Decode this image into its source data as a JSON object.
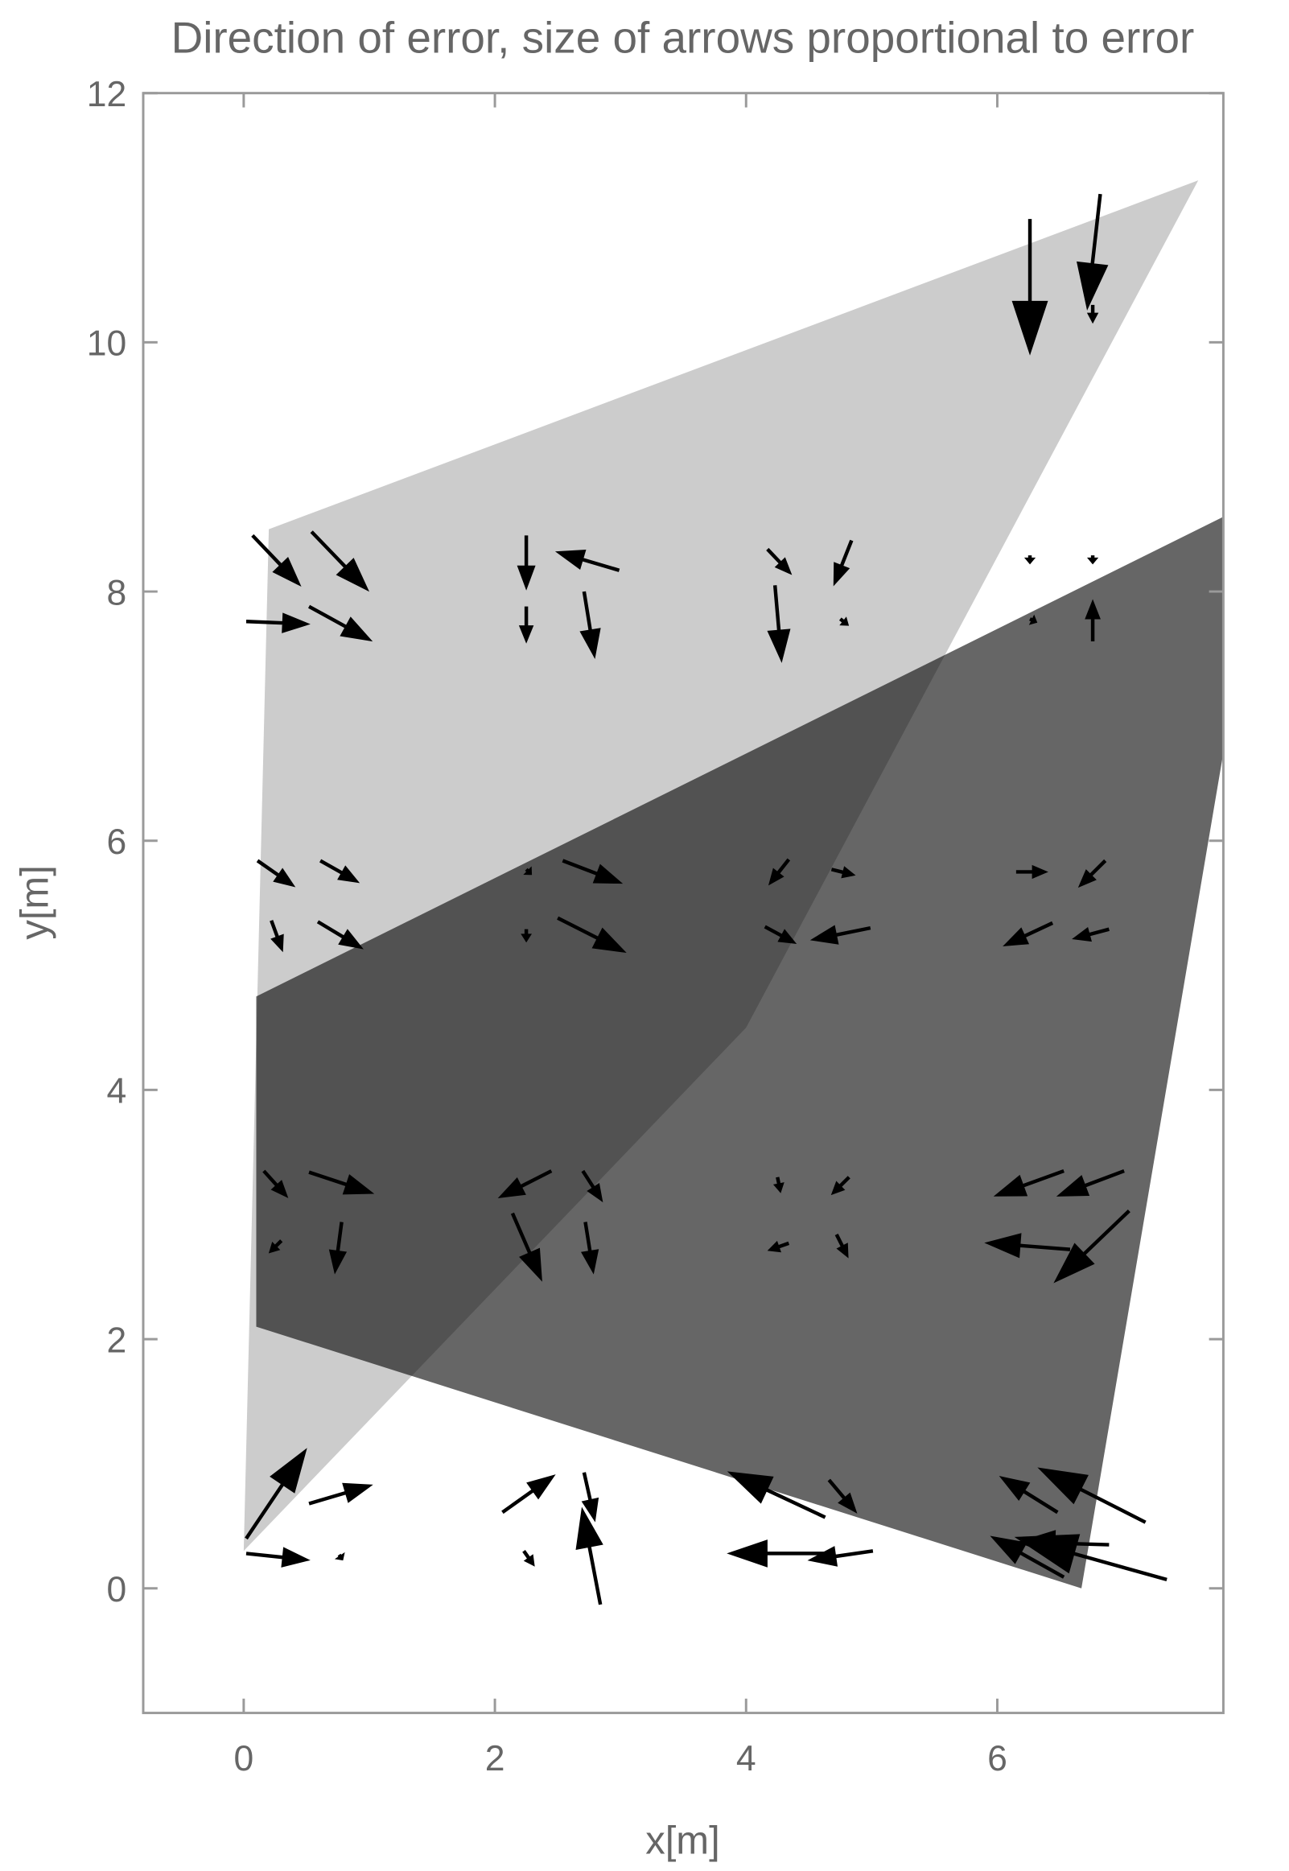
{
  "chart_data": {
    "type": "vector",
    "title": "Direction of error, size of arrows proportional to error",
    "x_label": "x[m]",
    "y_label": "y[m]",
    "xlim": [
      -0.8,
      7.8
    ],
    "ylim": [
      -1,
      12
    ],
    "xticks": [
      0,
      2,
      4,
      6
    ],
    "yticks": [
      0,
      2,
      4,
      6,
      8,
      10,
      12
    ],
    "polygons": [
      {
        "color": "#cccccc",
        "opacity": 1,
        "x": [
          0.2,
          7.6,
          4.0,
          0.0
        ],
        "y": [
          8.5,
          11.3,
          4.5,
          0.3
        ]
      },
      {
        "color": "#000000",
        "opacity": 0.6,
        "x": [
          0.1,
          7.9,
          7.9,
          6.67,
          0.1
        ],
        "y": [
          4.75,
          8.65,
          7.3,
          0.0,
          2.1
        ]
      }
    ],
    "arrow_color": "#000000",
    "arrows": {
      "x0": [
        0.07,
        0.54,
        0.02,
        0.52,
        2.25,
        2.25,
        2.99,
        2.71,
        4.17,
        4.84,
        4.23,
        4.75,
        6.26,
        6.76,
        6.26,
        6.76,
        6.26,
        6.82,
        6.76,
        0.11,
        0.61,
        0.22,
        0.59,
        2.25,
        2.54,
        2.25,
        2.5,
        4.34,
        4.68,
        4.15,
        4.99,
        6.15,
        6.86,
        6.44,
        6.89,
        0.16,
        0.52,
        0.3,
        0.78,
        2.45,
        2.7,
        2.14,
        2.72,
        4.25,
        4.82,
        4.34,
        4.72,
        6.53,
        7.01,
        6.58,
        7.05,
        0.02,
        0.52,
        0.02,
        0.76,
        2.06,
        2.23,
        2.71,
        2.84,
        4.63,
        4.66,
        5.01,
        4.63,
        6.48,
        7.18,
        6.53,
        7.35,
        6.89
      ],
      "y0": [
        8.45,
        8.48,
        7.76,
        7.88,
        8.45,
        7.88,
        8.17,
        8.0,
        8.34,
        8.41,
        8.05,
        7.78,
        8.29,
        8.29,
        7.78,
        7.6,
        10.99,
        11.19,
        10.3,
        5.84,
        5.84,
        5.36,
        5.35,
        5.77,
        5.84,
        5.29,
        5.38,
        5.85,
        5.77,
        5.31,
        5.3,
        5.75,
        5.84,
        5.34,
        5.29,
        3.35,
        3.34,
        2.79,
        2.94,
        3.35,
        3.35,
        3.01,
        2.94,
        3.3,
        3.3,
        2.77,
        2.84,
        3.35,
        3.35,
        2.72,
        3.03,
        0.4,
        0.68,
        0.28,
        0.27,
        0.61,
        0.3,
        0.93,
        -0.13,
        0.57,
        0.87,
        0.3,
        0.28,
        0.61,
        0.53,
        0.09,
        0.07,
        0.35
      ],
      "x1": [
        0.43,
        0.97,
        0.49,
        0.99,
        2.25,
        2.25,
        2.52,
        2.79,
        4.34,
        4.71,
        4.28,
        4.8,
        6.26,
        6.76,
        6.3,
        6.76,
        6.26,
        6.72,
        6.76,
        0.38,
        0.89,
        0.3,
        0.92,
        2.28,
        2.98,
        2.25,
        3.01,
        4.2,
        4.84,
        4.37,
        4.55,
        6.37,
        6.67,
        6.08,
        6.63,
        0.33,
        1.0,
        0.22,
        0.73,
        2.06,
        2.84,
        2.36,
        2.78,
        4.27,
        4.7,
        4.2,
        4.8,
        6.01,
        6.51,
        5.94,
        6.48,
        0.48,
        0.99,
        0.49,
        0.78,
        2.45,
        2.3,
        2.79,
        2.7,
        3.89,
        4.86,
        4.53,
        3.89,
        6.05,
        6.36,
        5.98,
        6.18,
        6.2
      ],
      "y1": [
        8.07,
        8.03,
        7.74,
        7.62,
        8.05,
        7.62,
        8.31,
        7.5,
        8.16,
        8.08,
        7.47,
        7.74,
        8.24,
        8.24,
        7.76,
        7.9,
        9.94,
        10.3,
        10.18,
        5.65,
        5.68,
        5.14,
        5.15,
        5.74,
        5.67,
        5.21,
        5.12,
        5.67,
        5.73,
        5.19,
        5.21,
        5.75,
        5.65,
        5.17,
        5.22,
        3.16,
        3.18,
        2.71,
        2.56,
        3.15,
        3.13,
        2.5,
        2.56,
        3.2,
        3.18,
        2.72,
        2.68,
        3.16,
        3.16,
        2.77,
        2.48,
        1.09,
        0.82,
        0.23,
        0.24,
        0.89,
        0.2,
        0.57,
        0.61,
        0.92,
        0.63,
        0.23,
        0.28,
        0.88,
        0.95,
        0.4,
        0.4,
        0.37
      ]
    }
  }
}
